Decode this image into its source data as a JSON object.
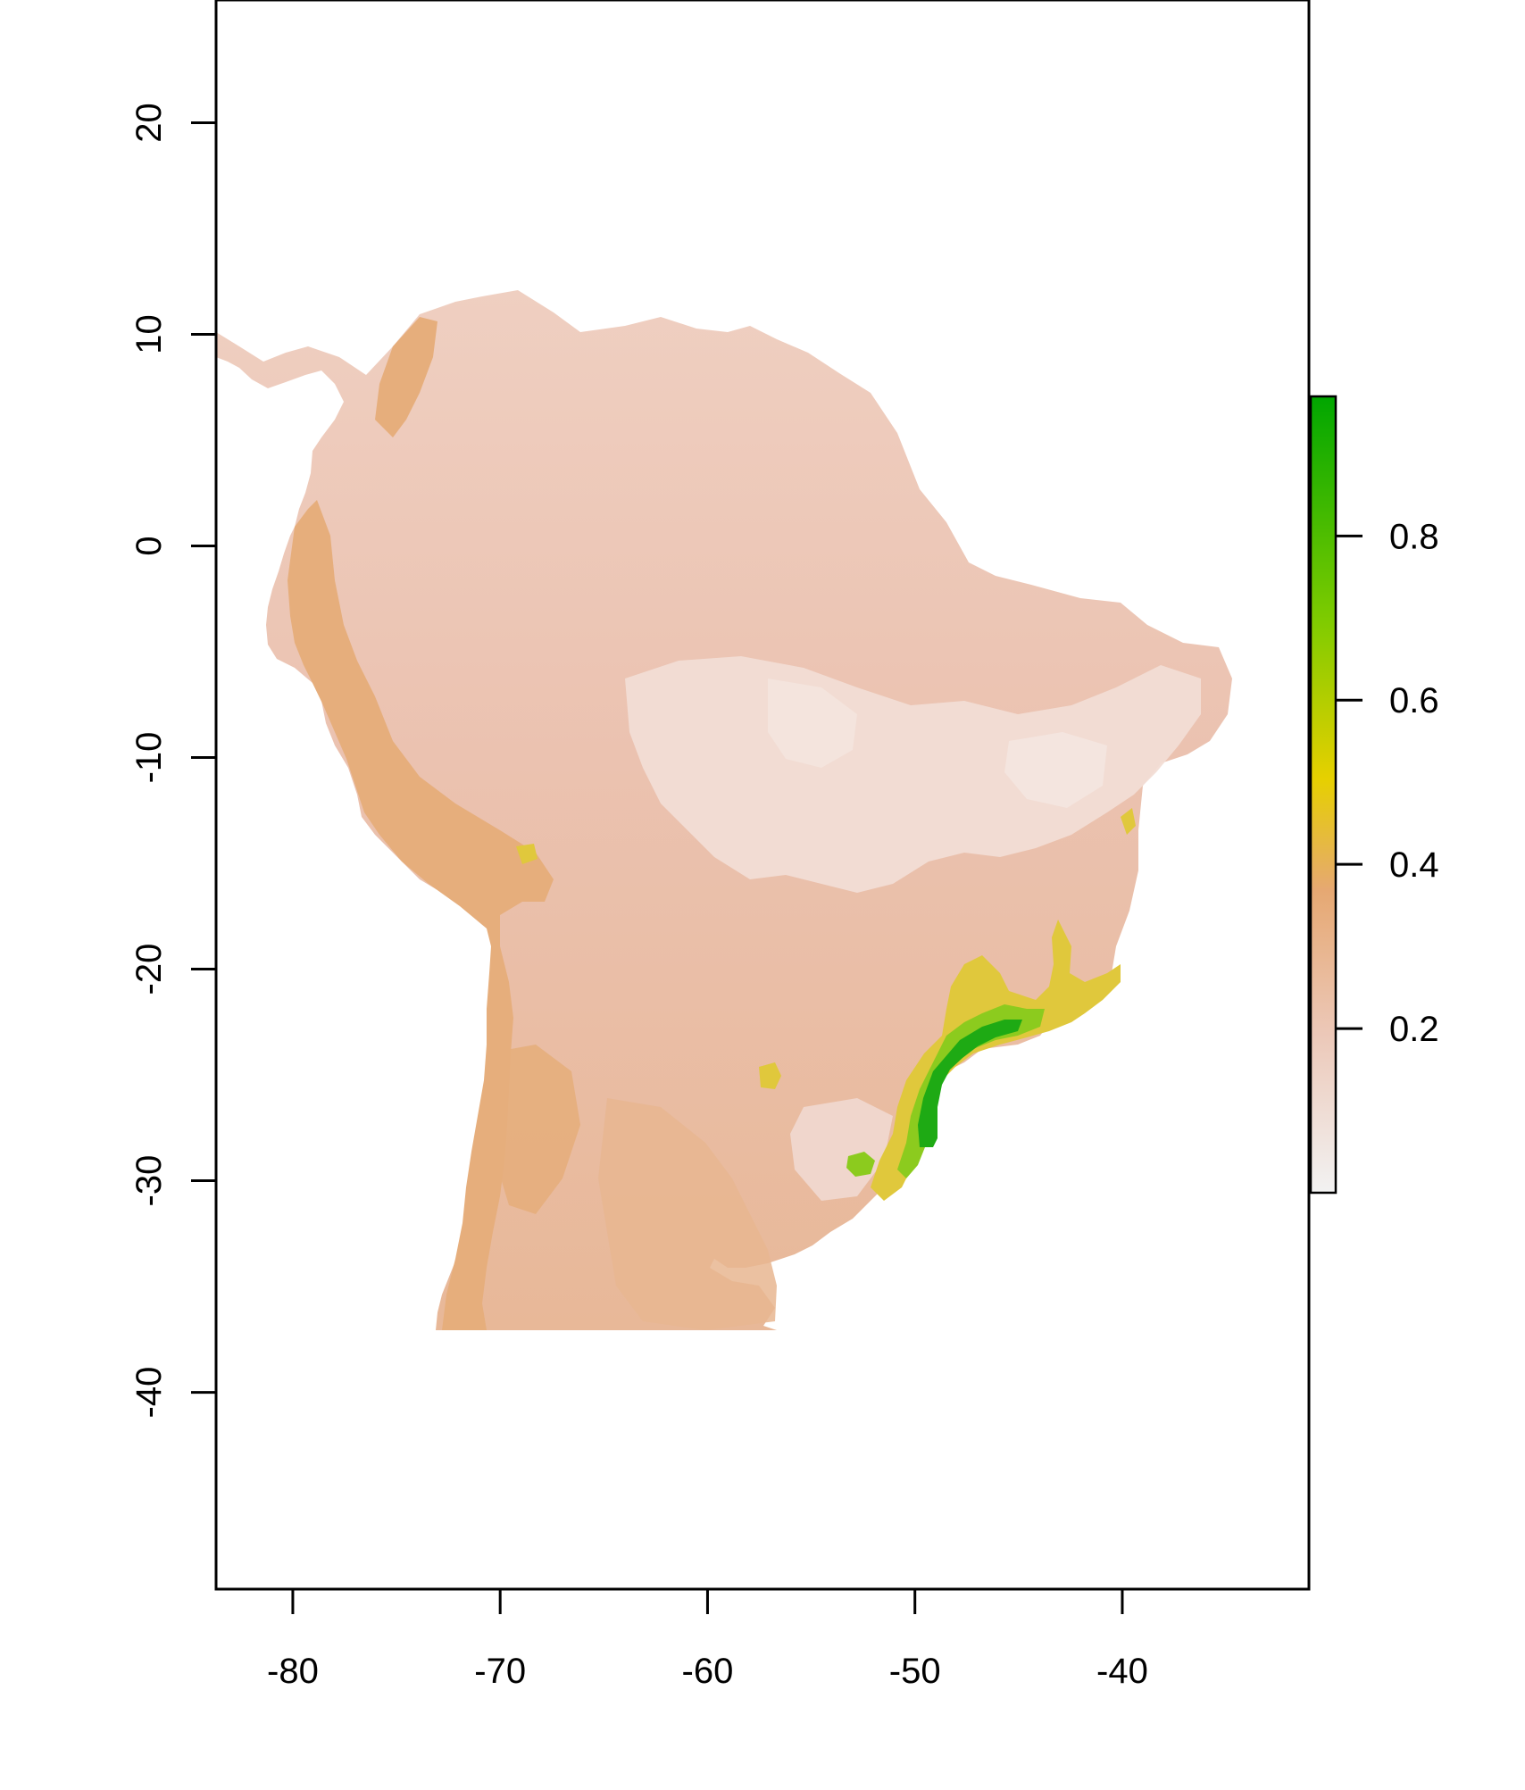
{
  "map": {
    "x_axis": {
      "range": [
        -83.7,
        -31.0
      ],
      "ticks": [
        -80,
        -70,
        -60,
        -50,
        -40
      ],
      "tick_labels": [
        "-80",
        "-70",
        "-60",
        "-50",
        "-40"
      ]
    },
    "y_axis": {
      "range": [
        -49.3,
        25.8
      ],
      "ticks": [
        20,
        10,
        0,
        -10,
        -20,
        -30,
        -40
      ],
      "tick_labels": [
        "20",
        "10",
        "0",
        "-10",
        "-20",
        "-30",
        "-40"
      ]
    },
    "legend": {
      "range": [
        0.0,
        0.97
      ],
      "ticks": [
        0.2,
        0.4,
        0.6,
        0.8
      ],
      "tick_labels": [
        "0.2",
        "0.4",
        "0.6",
        "0.8"
      ],
      "colors": [
        "#F2F2F2",
        "#ECC8B8",
        "#E6A872",
        "#E6D000",
        "#7ECB00",
        "#00A600"
      ]
    },
    "colors": {
      "land_base": "#EBC4B4",
      "land_light": "#F2DCD4",
      "andes": "#E6AE7C",
      "forest_high": "#1EAA14",
      "forest_mid": "#8CCB1E",
      "forest_low": "#E0C83C"
    }
  }
}
